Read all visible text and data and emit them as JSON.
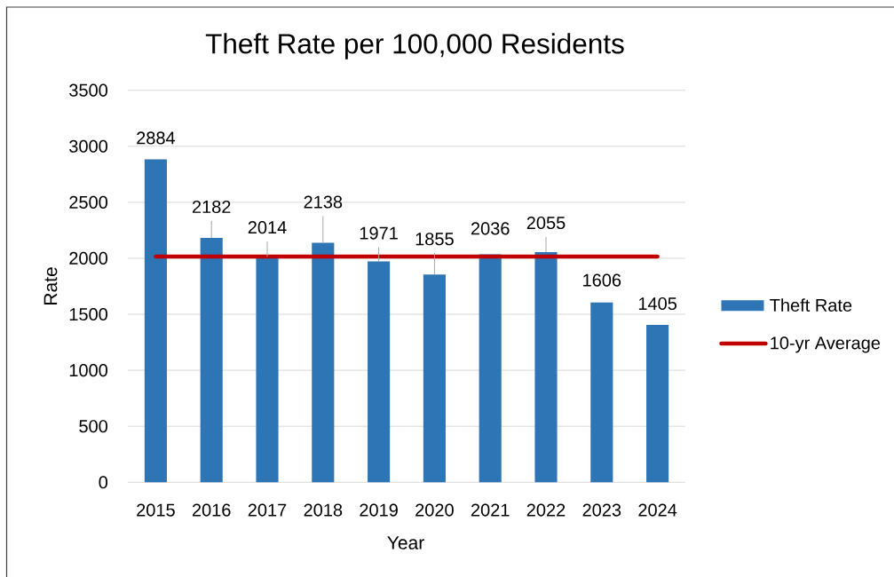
{
  "chart_data": {
    "type": "bar",
    "title": "Theft Rate per 100,000 Residents",
    "xlabel": "Year",
    "ylabel": "Rate",
    "categories": [
      "2015",
      "2016",
      "2017",
      "2018",
      "2019",
      "2020",
      "2021",
      "2022",
      "2023",
      "2024"
    ],
    "series": [
      {
        "name": "Theft Rate",
        "color": "#2e75b6",
        "values": [
          2884,
          2182,
          2014,
          2138,
          1971,
          1855,
          2036,
          2055,
          1606,
          1405
        ],
        "value_labels": [
          "2884",
          "2182",
          "2014",
          "2138",
          "1971",
          "1855",
          "2036",
          "2055",
          "1606",
          "1405"
        ]
      },
      {
        "name": "10-yr Average",
        "type": "line",
        "color": "#c00000",
        "values": [
          2015,
          2015,
          2015,
          2015,
          2015,
          2015,
          2015,
          2015,
          2015,
          2015
        ]
      }
    ],
    "ylim": [
      0,
      3500
    ],
    "yticks": [
      0,
      500,
      1000,
      1500,
      2000,
      2500,
      3000,
      3500
    ],
    "grid": "y",
    "legend": "right"
  }
}
